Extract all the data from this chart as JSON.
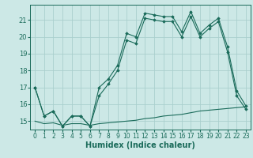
{
  "xlabel": "Humidex (Indice chaleur)",
  "background_color": "#cce8e6",
  "grid_color": "#aacfcd",
  "line_color": "#1a6b5a",
  "xlim": [
    -0.5,
    23.5
  ],
  "ylim": [
    14.5,
    21.9
  ],
  "yticks": [
    15,
    16,
    17,
    18,
    19,
    20,
    21
  ],
  "xticks": [
    0,
    1,
    2,
    3,
    4,
    5,
    6,
    7,
    8,
    9,
    10,
    11,
    12,
    13,
    14,
    15,
    16,
    17,
    18,
    19,
    20,
    21,
    22,
    23
  ],
  "series1_x": [
    0,
    1,
    2,
    3,
    4,
    5,
    6,
    7,
    8,
    9,
    10,
    11,
    12,
    13,
    14,
    15,
    16,
    17,
    18,
    19,
    20,
    21,
    22,
    23
  ],
  "series1_y": [
    17.0,
    15.3,
    15.6,
    14.7,
    15.3,
    15.3,
    14.7,
    17.0,
    17.5,
    18.3,
    20.2,
    20.0,
    21.4,
    21.3,
    21.2,
    21.2,
    20.3,
    21.5,
    20.2,
    20.7,
    21.1,
    19.4,
    16.8,
    15.9
  ],
  "series2_x": [
    0,
    1,
    2,
    3,
    4,
    5,
    6,
    7,
    8,
    9,
    10,
    11,
    12,
    13,
    14,
    15,
    16,
    17,
    18,
    19,
    20,
    21,
    22,
    23
  ],
  "series2_y": [
    17.0,
    15.3,
    15.6,
    14.7,
    15.3,
    15.3,
    14.7,
    16.5,
    17.2,
    18.0,
    19.8,
    19.6,
    21.1,
    21.0,
    20.9,
    20.9,
    20.0,
    21.2,
    20.0,
    20.5,
    20.9,
    19.1,
    16.5,
    15.7
  ],
  "series3_x": [
    0,
    1,
    2,
    3,
    4,
    5,
    6,
    7,
    8,
    9,
    10,
    11,
    12,
    13,
    14,
    15,
    16,
    17,
    18,
    19,
    20,
    21,
    22,
    23
  ],
  "series3_y": [
    15.0,
    14.85,
    14.9,
    14.75,
    14.85,
    14.85,
    14.75,
    14.85,
    14.9,
    14.95,
    15.0,
    15.05,
    15.15,
    15.2,
    15.3,
    15.35,
    15.4,
    15.5,
    15.6,
    15.65,
    15.7,
    15.75,
    15.8,
    15.85
  ]
}
